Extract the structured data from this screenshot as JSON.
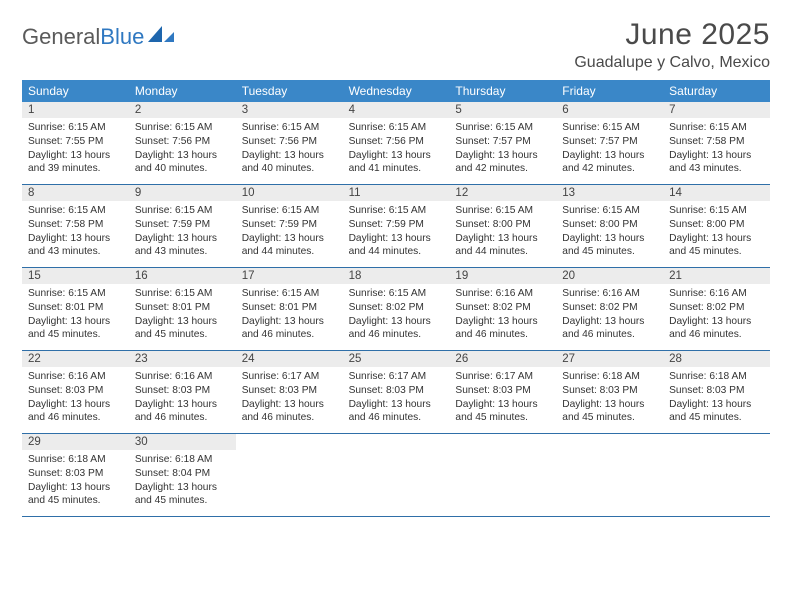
{
  "brand": {
    "part1": "General",
    "part2": "Blue"
  },
  "title": "June 2025",
  "location": "Guadalupe y Calvo, Mexico",
  "colors": {
    "header_bg": "#3a87c8",
    "header_text": "#ffffff",
    "daynum_bg": "#ececec",
    "week_border": "#2f6fa8",
    "brand_grey": "#5a5a5a",
    "brand_blue": "#2f78c1"
  },
  "dayNames": [
    "Sunday",
    "Monday",
    "Tuesday",
    "Wednesday",
    "Thursday",
    "Friday",
    "Saturday"
  ],
  "labels": {
    "sunrise": "Sunrise:",
    "sunset": "Sunset:",
    "daylight": "Daylight:"
  },
  "weeks": [
    [
      {
        "n": 1,
        "sunrise": "6:15 AM",
        "sunset": "7:55 PM",
        "daylight": "13 hours and 39 minutes."
      },
      {
        "n": 2,
        "sunrise": "6:15 AM",
        "sunset": "7:56 PM",
        "daylight": "13 hours and 40 minutes."
      },
      {
        "n": 3,
        "sunrise": "6:15 AM",
        "sunset": "7:56 PM",
        "daylight": "13 hours and 40 minutes."
      },
      {
        "n": 4,
        "sunrise": "6:15 AM",
        "sunset": "7:56 PM",
        "daylight": "13 hours and 41 minutes."
      },
      {
        "n": 5,
        "sunrise": "6:15 AM",
        "sunset": "7:57 PM",
        "daylight": "13 hours and 42 minutes."
      },
      {
        "n": 6,
        "sunrise": "6:15 AM",
        "sunset": "7:57 PM",
        "daylight": "13 hours and 42 minutes."
      },
      {
        "n": 7,
        "sunrise": "6:15 AM",
        "sunset": "7:58 PM",
        "daylight": "13 hours and 43 minutes."
      }
    ],
    [
      {
        "n": 8,
        "sunrise": "6:15 AM",
        "sunset": "7:58 PM",
        "daylight": "13 hours and 43 minutes."
      },
      {
        "n": 9,
        "sunrise": "6:15 AM",
        "sunset": "7:59 PM",
        "daylight": "13 hours and 43 minutes."
      },
      {
        "n": 10,
        "sunrise": "6:15 AM",
        "sunset": "7:59 PM",
        "daylight": "13 hours and 44 minutes."
      },
      {
        "n": 11,
        "sunrise": "6:15 AM",
        "sunset": "7:59 PM",
        "daylight": "13 hours and 44 minutes."
      },
      {
        "n": 12,
        "sunrise": "6:15 AM",
        "sunset": "8:00 PM",
        "daylight": "13 hours and 44 minutes."
      },
      {
        "n": 13,
        "sunrise": "6:15 AM",
        "sunset": "8:00 PM",
        "daylight": "13 hours and 45 minutes."
      },
      {
        "n": 14,
        "sunrise": "6:15 AM",
        "sunset": "8:00 PM",
        "daylight": "13 hours and 45 minutes."
      }
    ],
    [
      {
        "n": 15,
        "sunrise": "6:15 AM",
        "sunset": "8:01 PM",
        "daylight": "13 hours and 45 minutes."
      },
      {
        "n": 16,
        "sunrise": "6:15 AM",
        "sunset": "8:01 PM",
        "daylight": "13 hours and 45 minutes."
      },
      {
        "n": 17,
        "sunrise": "6:15 AM",
        "sunset": "8:01 PM",
        "daylight": "13 hours and 46 minutes."
      },
      {
        "n": 18,
        "sunrise": "6:15 AM",
        "sunset": "8:02 PM",
        "daylight": "13 hours and 46 minutes."
      },
      {
        "n": 19,
        "sunrise": "6:16 AM",
        "sunset": "8:02 PM",
        "daylight": "13 hours and 46 minutes."
      },
      {
        "n": 20,
        "sunrise": "6:16 AM",
        "sunset": "8:02 PM",
        "daylight": "13 hours and 46 minutes."
      },
      {
        "n": 21,
        "sunrise": "6:16 AM",
        "sunset": "8:02 PM",
        "daylight": "13 hours and 46 minutes."
      }
    ],
    [
      {
        "n": 22,
        "sunrise": "6:16 AM",
        "sunset": "8:03 PM",
        "daylight": "13 hours and 46 minutes."
      },
      {
        "n": 23,
        "sunrise": "6:16 AM",
        "sunset": "8:03 PM",
        "daylight": "13 hours and 46 minutes."
      },
      {
        "n": 24,
        "sunrise": "6:17 AM",
        "sunset": "8:03 PM",
        "daylight": "13 hours and 46 minutes."
      },
      {
        "n": 25,
        "sunrise": "6:17 AM",
        "sunset": "8:03 PM",
        "daylight": "13 hours and 46 minutes."
      },
      {
        "n": 26,
        "sunrise": "6:17 AM",
        "sunset": "8:03 PM",
        "daylight": "13 hours and 45 minutes."
      },
      {
        "n": 27,
        "sunrise": "6:18 AM",
        "sunset": "8:03 PM",
        "daylight": "13 hours and 45 minutes."
      },
      {
        "n": 28,
        "sunrise": "6:18 AM",
        "sunset": "8:03 PM",
        "daylight": "13 hours and 45 minutes."
      }
    ],
    [
      {
        "n": 29,
        "sunrise": "6:18 AM",
        "sunset": "8:03 PM",
        "daylight": "13 hours and 45 minutes."
      },
      {
        "n": 30,
        "sunrise": "6:18 AM",
        "sunset": "8:04 PM",
        "daylight": "13 hours and 45 minutes."
      },
      null,
      null,
      null,
      null,
      null
    ]
  ]
}
